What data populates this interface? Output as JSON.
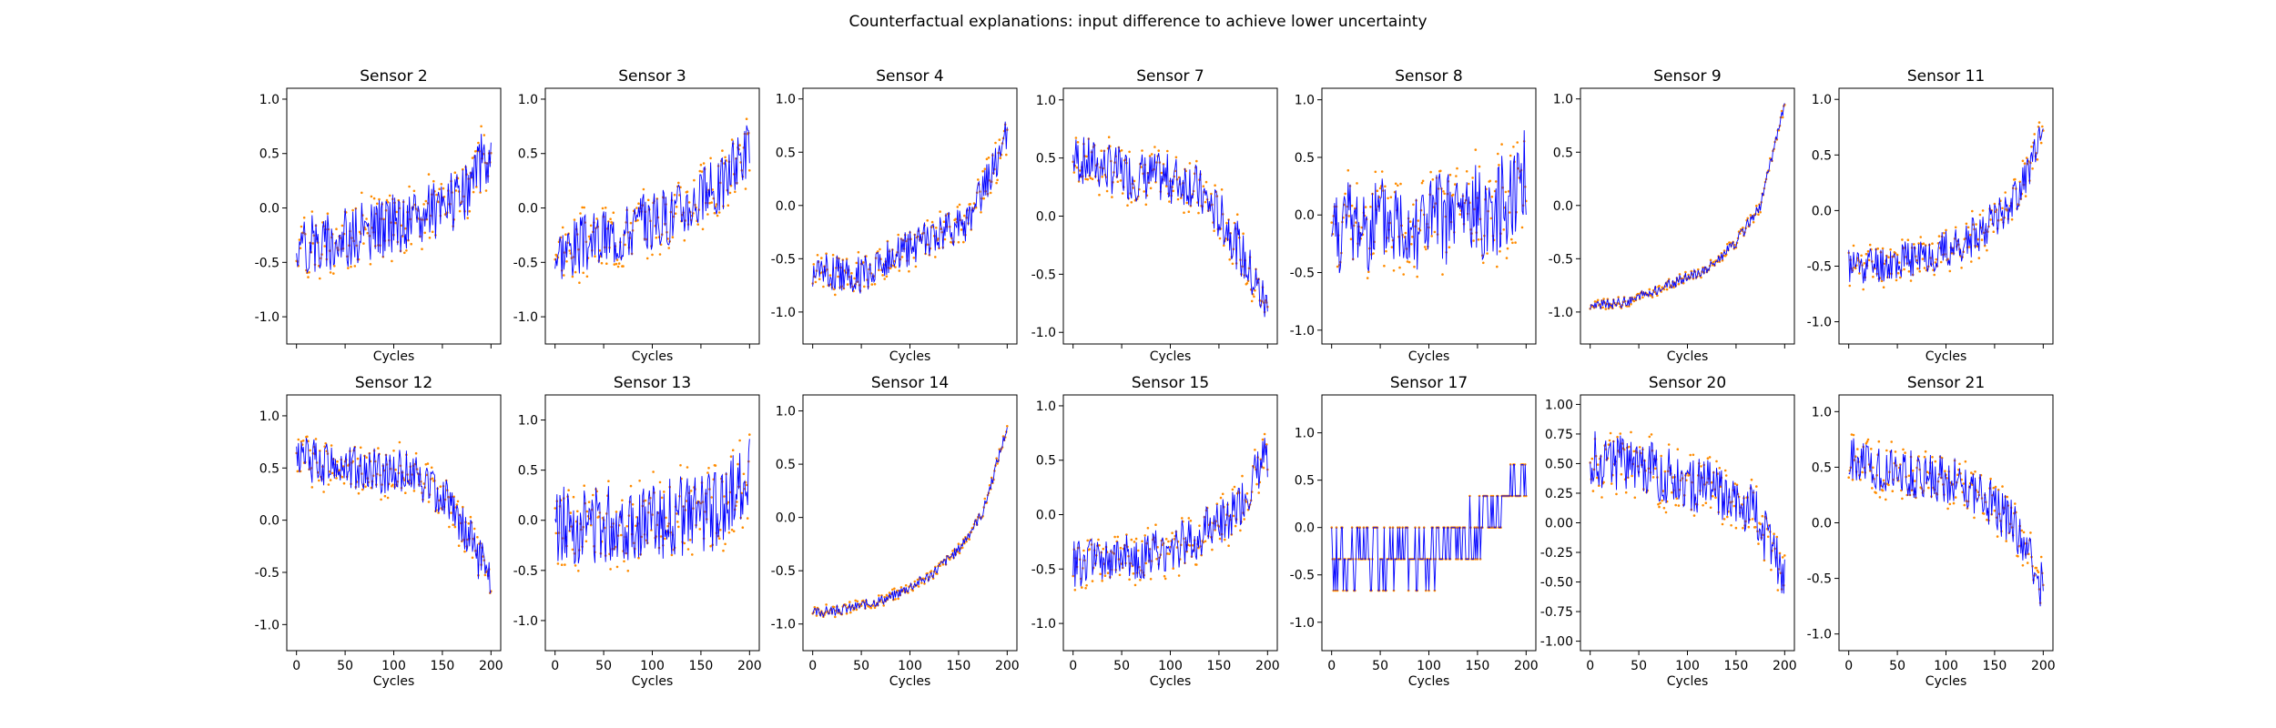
{
  "figure": {
    "title": "Counterfactual explanations: input difference to achieve lower uncertainty"
  },
  "chart_data": {
    "type": "line",
    "note_markers": "orange dots = original input, blue line = counterfactual",
    "colors": {
      "line": "#0000ff",
      "points": "#ff8c00"
    },
    "shared_xlabel": "Cycles",
    "x_ticks": [
      0,
      50,
      100,
      150,
      200
    ],
    "xlim": [
      -10,
      210
    ],
    "n_cycles": 200,
    "subplots": [
      {
        "title": "Sensor 2",
        "ylim": [
          -1.25,
          1.1
        ],
        "yticks": [
          "-1.0",
          "-0.5",
          "0.0",
          "0.5",
          "1.0"
        ],
        "yvals": [
          -1.0,
          -0.5,
          0.0,
          0.5,
          1.0
        ],
        "trend": [
          [
            0,
            -0.35
          ],
          [
            60,
            -0.25
          ],
          [
            120,
            -0.1
          ],
          [
            170,
            0.1
          ],
          [
            200,
            0.55
          ]
        ],
        "noise": 0.28,
        "seed": 2
      },
      {
        "title": "Sensor 3",
        "ylim": [
          -1.25,
          1.1
        ],
        "yticks": [
          "-1.0",
          "-0.5",
          "0.0",
          "0.5",
          "1.0"
        ],
        "yvals": [
          -1.0,
          -0.5,
          0.0,
          0.5,
          1.0
        ],
        "trend": [
          [
            0,
            -0.4
          ],
          [
            60,
            -0.25
          ],
          [
            120,
            -0.05
          ],
          [
            170,
            0.2
          ],
          [
            200,
            0.6
          ]
        ],
        "noise": 0.28,
        "seed": 3
      },
      {
        "title": "Sensor 4",
        "ylim": [
          -1.3,
          1.1
        ],
        "yticks": [
          "-1.0",
          "-0.5",
          "0.0",
          "0.5",
          "1.0"
        ],
        "yvals": [
          -1.0,
          -0.5,
          0.0,
          0.5,
          1.0
        ],
        "trend": [
          [
            0,
            -0.6
          ],
          [
            50,
            -0.65
          ],
          [
            100,
            -0.4
          ],
          [
            160,
            -0.15
          ],
          [
            200,
            0.65
          ]
        ],
        "noise": 0.18,
        "seed": 4
      },
      {
        "title": "Sensor 7",
        "ylim": [
          -1.1,
          1.1
        ],
        "yticks": [
          "-1.0",
          "-0.5",
          "0.0",
          "0.5",
          "1.0"
        ],
        "yvals": [
          -1.0,
          -0.5,
          0.0,
          0.5,
          1.0
        ],
        "trend": [
          [
            0,
            0.5
          ],
          [
            60,
            0.35
          ],
          [
            120,
            0.3
          ],
          [
            160,
            -0.1
          ],
          [
            200,
            -0.8
          ]
        ],
        "noise": 0.22,
        "seed": 7
      },
      {
        "title": "Sensor 8",
        "ylim": [
          -1.12,
          1.1
        ],
        "yticks": [
          "-1.0",
          "-0.5",
          "0.0",
          "0.5",
          "1.0"
        ],
        "yvals": [
          -1.0,
          -0.5,
          0.0,
          0.5,
          1.0
        ],
        "trend": [
          [
            0,
            -0.1
          ],
          [
            100,
            -0.05
          ],
          [
            170,
            0.05
          ],
          [
            200,
            0.4
          ]
        ],
        "noise": 0.42,
        "seed": 8
      },
      {
        "title": "Sensor 9",
        "ylim": [
          -1.3,
          1.1
        ],
        "yticks": [
          "-1.0",
          "-0.5",
          "0.0",
          "0.5",
          "1.0"
        ],
        "yvals": [
          -1.0,
          -0.5,
          0.0,
          0.5,
          1.0
        ],
        "trend": [
          [
            0,
            -0.95
          ],
          [
            40,
            -0.9
          ],
          [
            80,
            -0.75
          ],
          [
            120,
            -0.6
          ],
          [
            150,
            -0.35
          ],
          [
            175,
            0.0
          ],
          [
            200,
            0.95
          ]
        ],
        "noise": 0.05,
        "seed": 9
      },
      {
        "title": "Sensor 11",
        "ylim": [
          -1.2,
          1.1
        ],
        "yticks": [
          "-1.0",
          "-0.5",
          "0.0",
          "0.5",
          "1.0"
        ],
        "yvals": [
          -1.0,
          -0.5,
          0.0,
          0.5,
          1.0
        ],
        "trend": [
          [
            0,
            -0.5
          ],
          [
            60,
            -0.45
          ],
          [
            120,
            -0.3
          ],
          [
            170,
            0.1
          ],
          [
            200,
            0.65
          ]
        ],
        "noise": 0.18,
        "seed": 11
      },
      {
        "title": "Sensor 12",
        "ylim": [
          -1.25,
          1.2
        ],
        "yticks": [
          "-1.0",
          "-0.5",
          "0.0",
          "0.5",
          "1.0"
        ],
        "yvals": [
          -1.0,
          -0.5,
          0.0,
          0.5,
          1.0
        ],
        "trend": [
          [
            0,
            0.6
          ],
          [
            60,
            0.5
          ],
          [
            120,
            0.45
          ],
          [
            160,
            0.15
          ],
          [
            200,
            -0.6
          ]
        ],
        "noise": 0.22,
        "seed": 12
      },
      {
        "title": "Sensor 13",
        "ylim": [
          -1.3,
          1.25
        ],
        "yticks": [
          "-1.0",
          "-0.5",
          "0.0",
          "0.5",
          "1.0"
        ],
        "yvals": [
          -1.0,
          -0.5,
          0.0,
          0.5,
          1.0
        ],
        "trend": [
          [
            0,
            -0.05
          ],
          [
            100,
            0.0
          ],
          [
            170,
            0.1
          ],
          [
            200,
            0.5
          ]
        ],
        "noise": 0.4,
        "seed": 13
      },
      {
        "title": "Sensor 14",
        "ylim": [
          -1.25,
          1.15
        ],
        "yticks": [
          "-1.0",
          "-0.5",
          "0.0",
          "0.5",
          "1.0"
        ],
        "yvals": [
          -1.0,
          -0.5,
          0.0,
          0.5,
          1.0
        ],
        "trend": [
          [
            0,
            -0.9
          ],
          [
            40,
            -0.85
          ],
          [
            80,
            -0.75
          ],
          [
            120,
            -0.55
          ],
          [
            150,
            -0.3
          ],
          [
            175,
            0.05
          ],
          [
            200,
            0.85
          ]
        ],
        "noise": 0.05,
        "seed": 14
      },
      {
        "title": "Sensor 15",
        "ylim": [
          -1.25,
          1.1
        ],
        "yticks": [
          "-1.0",
          "-0.5",
          "0.0",
          "0.5",
          "1.0"
        ],
        "yvals": [
          -1.0,
          -0.5,
          0.0,
          0.5,
          1.0
        ],
        "trend": [
          [
            0,
            -0.45
          ],
          [
            60,
            -0.4
          ],
          [
            120,
            -0.25
          ],
          [
            170,
            0.05
          ],
          [
            200,
            0.55
          ]
        ],
        "noise": 0.22,
        "seed": 15
      },
      {
        "title": "Sensor 17",
        "ylim": [
          -1.3,
          1.4
        ],
        "yticks": [
          "-1.0",
          "-0.5",
          "0.0",
          "0.5",
          "1.0"
        ],
        "yvals": [
          -1.0,
          -0.5,
          0.0,
          0.5,
          1.0
        ],
        "trend": [
          [
            0,
            -0.35
          ],
          [
            100,
            -0.3
          ],
          [
            150,
            0.0
          ],
          [
            200,
            0.6
          ]
        ],
        "noise": 0.3,
        "step": 0.333,
        "seed": 17
      },
      {
        "title": "Sensor 20",
        "ylim": [
          -1.08,
          1.08
        ],
        "yticks": [
          "-1.00",
          "-0.75",
          "-0.50",
          "-0.25",
          "0.00",
          "0.25",
          "0.50",
          "0.75",
          "1.00"
        ],
        "yvals": [
          -1.0,
          -0.75,
          -0.5,
          -0.25,
          0.0,
          0.25,
          0.5,
          0.75,
          1.0
        ],
        "trend": [
          [
            0,
            0.55
          ],
          [
            60,
            0.45
          ],
          [
            120,
            0.3
          ],
          [
            170,
            0.1
          ],
          [
            200,
            -0.5
          ]
        ],
        "noise": 0.24,
        "seed": 20
      },
      {
        "title": "Sensor 21",
        "ylim": [
          -1.15,
          1.15
        ],
        "yticks": [
          "-1.0",
          "-0.5",
          "0.0",
          "0.5",
          "1.0"
        ],
        "yvals": [
          -1.0,
          -0.5,
          0.0,
          0.5,
          1.0
        ],
        "trend": [
          [
            0,
            0.55
          ],
          [
            60,
            0.45
          ],
          [
            120,
            0.35
          ],
          [
            170,
            0.0
          ],
          [
            200,
            -0.6
          ]
        ],
        "noise": 0.22,
        "seed": 21
      }
    ]
  }
}
